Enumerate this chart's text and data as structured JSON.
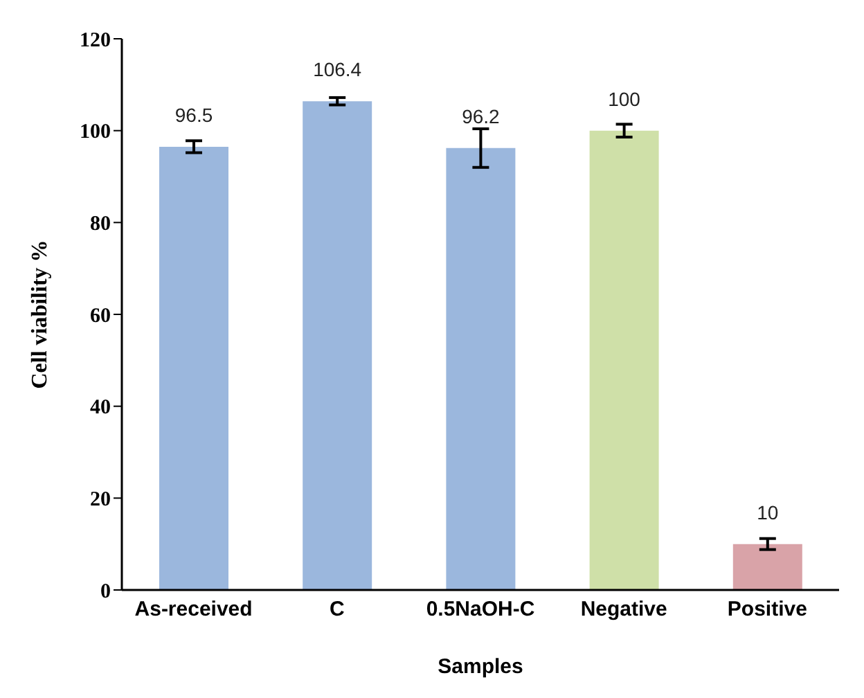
{
  "chart_data": {
    "type": "bar",
    "xlabel": "Samples",
    "ylabel": "Cell viability %",
    "categories": [
      "As-received",
      "C",
      "0.5NaOH-C",
      "Negative",
      "Positive"
    ],
    "values": [
      96.5,
      106.4,
      96.2,
      100,
      10
    ],
    "colors": [
      "#9bb7dd",
      "#9bb7dd",
      "#9bb7dd",
      "#cfe0a8",
      "#d9a3a8"
    ],
    "errors": [
      1.3,
      0.8,
      4.2,
      1.4,
      1.2
    ],
    "ylim": [
      0,
      120
    ],
    "yticks": [
      0,
      20,
      40,
      60,
      80,
      100,
      120
    ],
    "grid": false,
    "data_labels": true
  }
}
